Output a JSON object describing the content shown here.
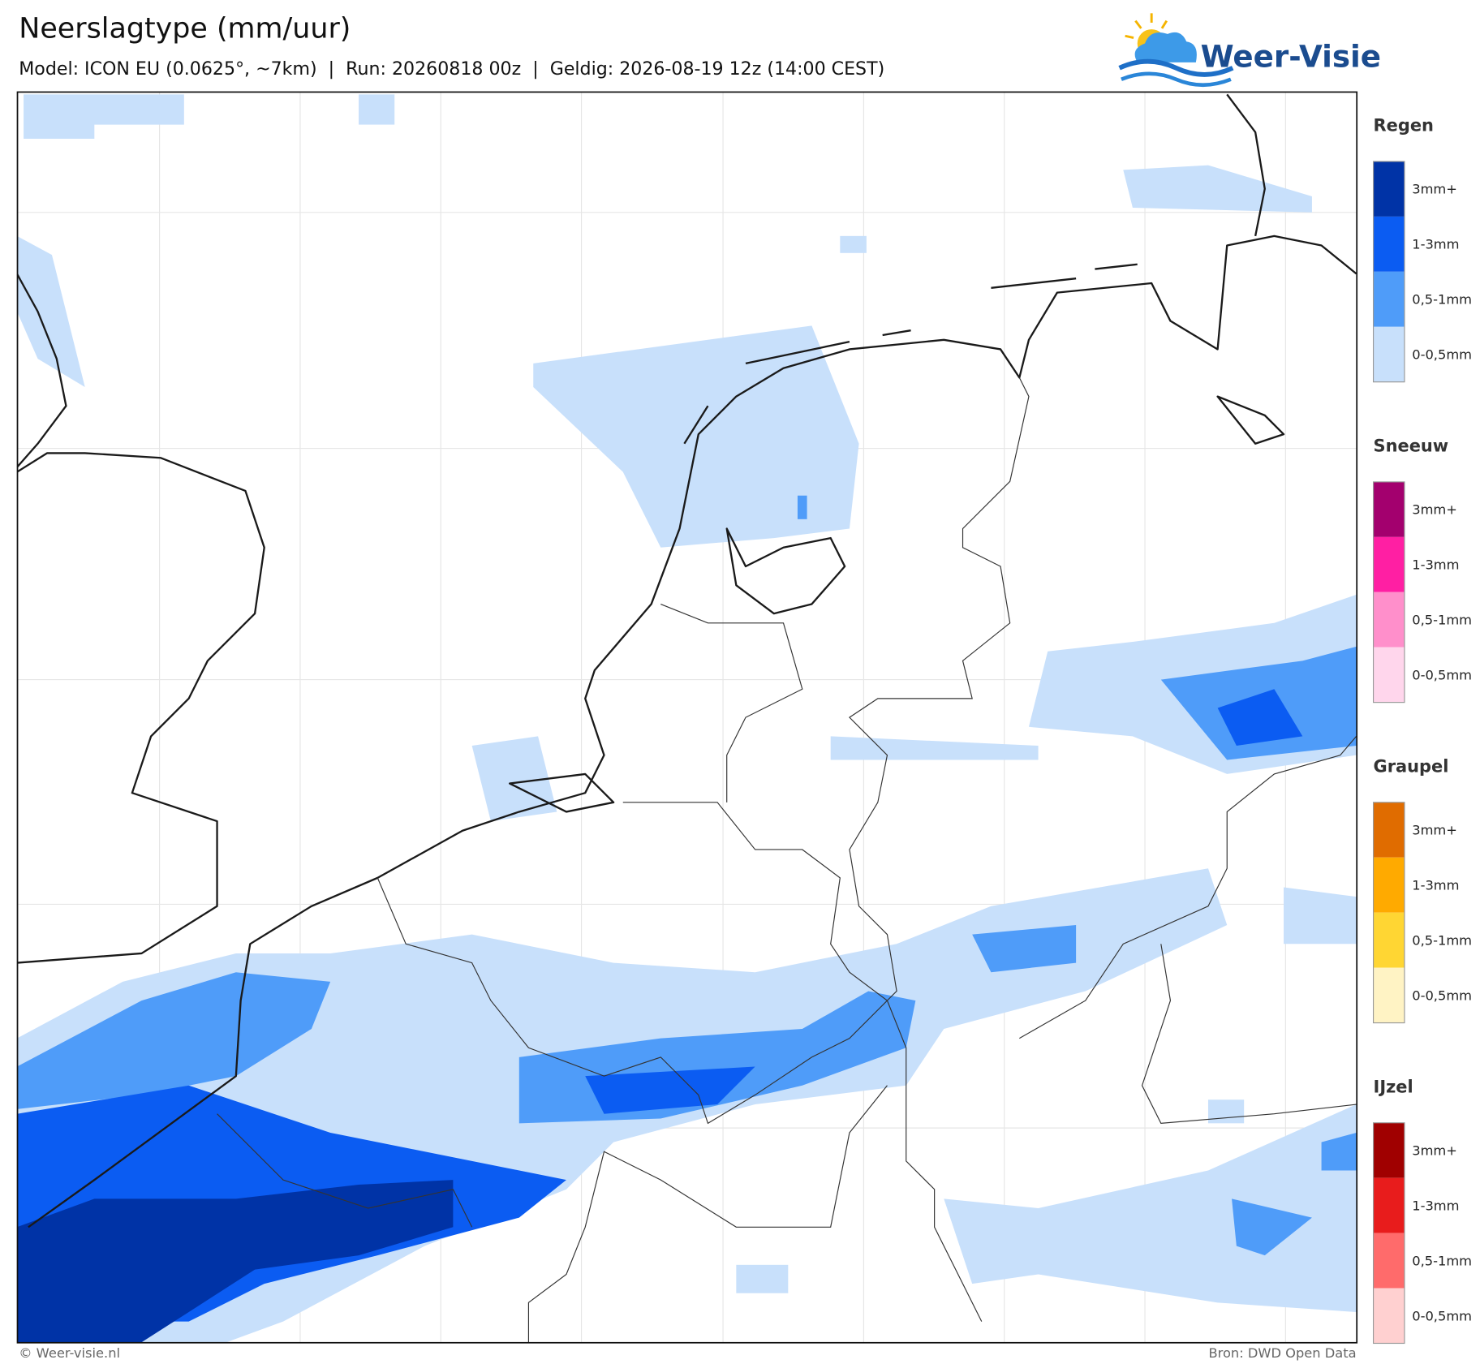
{
  "header": {
    "title": "Neerslagtype (mm/uur)",
    "subtitle": "Model: ICON EU (0.0625°, ~7km)  |  Run: 20260818 00z  |  Geldig: 2026-08-19 12z (14:00 CEST)"
  },
  "logo": {
    "text": "Weer-Visie"
  },
  "legend": {
    "groups": [
      {
        "title": "Regen",
        "items": [
          {
            "label": "3mm+",
            "color": "#0033a6"
          },
          {
            "label": "1-3mm",
            "color": "#0b5cf2"
          },
          {
            "label": "0,5-1mm",
            "color": "#4f9cf9"
          },
          {
            "label": "0-0,5mm",
            "color": "#c8e0fb"
          }
        ]
      },
      {
        "title": "Sneeuw",
        "items": [
          {
            "label": "3mm+",
            "color": "#a3006e"
          },
          {
            "label": "1-3mm",
            "color": "#ff1fa3"
          },
          {
            "label": "0,5-1mm",
            "color": "#ff8fcb"
          },
          {
            "label": "0-0,5mm",
            "color": "#ffd6ec"
          }
        ]
      },
      {
        "title": "Graupel",
        "items": [
          {
            "label": "3mm+",
            "color": "#e06c00"
          },
          {
            "label": "1-3mm",
            "color": "#ffaa00"
          },
          {
            "label": "0,5-1mm",
            "color": "#ffd633"
          },
          {
            "label": "0-0,5mm",
            "color": "#fff3c4"
          }
        ]
      },
      {
        "title": "IJzel",
        "items": [
          {
            "label": "3mm+",
            "color": "#a00000"
          },
          {
            "label": "1-3mm",
            "color": "#e81c1c"
          },
          {
            "label": "0,5-1mm",
            "color": "#ff6b6b"
          },
          {
            "label": "0-0,5mm",
            "color": "#ffd0d0"
          }
        ]
      }
    ]
  },
  "footer": {
    "left": "© Weer-visie.nl",
    "right": "Bron: DWD Open Data"
  }
}
